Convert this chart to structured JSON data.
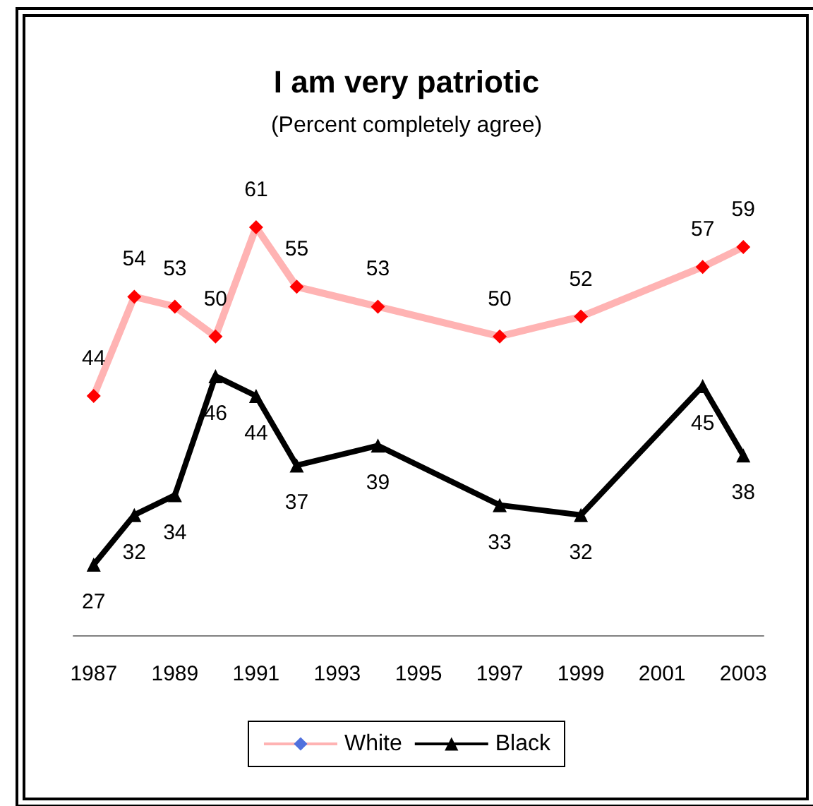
{
  "chart_data": {
    "type": "line",
    "title": "I am very patriotic",
    "subtitle": "(Percent completely agree)",
    "xlim": [
      1986.5,
      2003.5
    ],
    "xticks": [
      1987,
      1989,
      1991,
      1993,
      1995,
      1997,
      1999,
      2001,
      2003
    ],
    "data_labels": true,
    "legend": "bottom",
    "grid": false,
    "series": [
      {
        "name": "White",
        "color": "#ffb3b3",
        "colors": [
          "#ff0000",
          "#ff0000",
          "#ff0000",
          "#ff0000",
          "#ff0000",
          "#ff0000",
          "#ff0000",
          "#ff0000",
          "#ff0000",
          "#ff0000",
          "#ff0000"
        ],
        "marker": "diamond",
        "x": [
          1987,
          1988,
          1989,
          1990,
          1991,
          1992,
          1994,
          1997,
          1999,
          2002,
          2003
        ],
        "values": [
          44,
          54,
          53,
          50,
          61,
          55,
          53,
          50,
          52,
          57,
          59
        ]
      },
      {
        "name": "Black",
        "color": "#000000",
        "marker": "triangle",
        "x": [
          1987,
          1988,
          1989,
          1990,
          1991,
          1992,
          1994,
          1997,
          1999,
          2002,
          2003
        ],
        "values": [
          27,
          32,
          34,
          46,
          44,
          37,
          39,
          33,
          32,
          45,
          38
        ]
      }
    ]
  }
}
